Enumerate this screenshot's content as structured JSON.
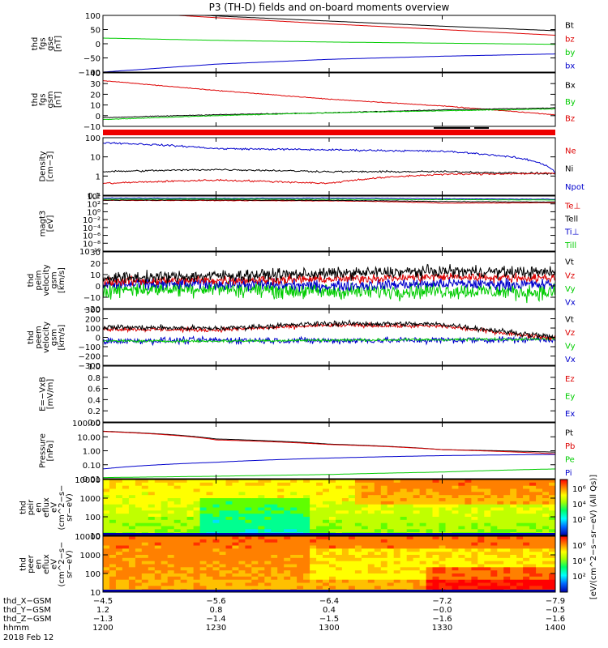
{
  "title": "P3 (TH-D) fields and on-board moments overview",
  "colors": {
    "black": "#000000",
    "red": "#dd0000",
    "green": "#00cc00",
    "blue": "#0000cc"
  },
  "chart_data": [
    {
      "id": "fgs_gse",
      "type": "line",
      "ylabel": [
        "thd",
        "fgs",
        "gse",
        "[nT]"
      ],
      "ylim": [
        -100,
        100
      ],
      "yticks": [
        "100",
        "50",
        "0",
        "−50",
        "−100"
      ],
      "legend": [
        {
          "name": "Bt",
          "color": "black"
        },
        {
          "name": "bz",
          "color": "red"
        },
        {
          "name": "by",
          "color": "green"
        },
        {
          "name": "bx",
          "color": "blue"
        }
      ],
      "x_time_hhmm": [
        "1200",
        "1230",
        "1300",
        "1330",
        "1400"
      ],
      "series": [
        {
          "name": "Bt",
          "values": [
            118,
            98,
            80,
            62,
            46
          ]
        },
        {
          "name": "bz",
          "values": [
            116,
            92,
            70,
            50,
            30
          ]
        },
        {
          "name": "by",
          "values": [
            20,
            12,
            6,
            2,
            -2
          ]
        },
        {
          "name": "bx",
          "values": [
            -100,
            -72,
            -55,
            -44,
            -36
          ]
        }
      ]
    },
    {
      "id": "fgs_gsm",
      "type": "line",
      "ylabel": [
        "thd",
        "fgs",
        "gsm",
        "[nT]"
      ],
      "ylim": [
        -15,
        40
      ],
      "yticks": [
        "40",
        "30",
        "20",
        "10",
        "0",
        "−10"
      ],
      "legend": [
        {
          "name": "Bx",
          "color": "black"
        },
        {
          "name": "By",
          "color": "green"
        },
        {
          "name": "Bz",
          "color": "red"
        }
      ],
      "series": [
        {
          "name": "Bz",
          "values": [
            32,
            22,
            13,
            6,
            -3
          ]
        },
        {
          "name": "Bx",
          "values": [
            -6,
            -3,
            -1,
            2,
            4
          ]
        },
        {
          "name": "By",
          "values": [
            -8,
            -4,
            -1,
            1,
            3
          ]
        }
      ]
    },
    {
      "id": "density",
      "type": "line",
      "ylabel": [
        "Density",
        "[cm−3]"
      ],
      "yscale": "log",
      "yticks": [
        "100",
        "10",
        "1",
        "0.1"
      ],
      "legend": [
        {
          "name": "Ne",
          "color": "red"
        },
        {
          "name": "Ni",
          "color": "black"
        },
        {
          "name": "Npot",
          "color": "blue"
        }
      ],
      "series": [
        {
          "name": "Npot",
          "values": [
            150,
            60,
            50,
            40,
            1.5
          ]
        },
        {
          "name": "Ni",
          "values": [
            1.8,
            2.5,
            1.8,
            1.8,
            1.3
          ]
        },
        {
          "name": "Ne",
          "values": [
            0.3,
            0.5,
            0.3,
            1.2,
            1.4
          ]
        }
      ]
    },
    {
      "id": "temperature",
      "type": "line",
      "ylabel": [
        "magt3",
        "[eV]"
      ],
      "yscale": "log",
      "yticks": [
        "10⁴",
        "10²",
        "10⁰",
        "10⁻²",
        "10⁻⁴",
        "10⁻⁶",
        "10⁻⁸",
        "10⁻¹⁰"
      ],
      "legend": [
        {
          "name": "Te⊥",
          "color": "red"
        },
        {
          "name": "Tell",
          "color": "black"
        },
        {
          "name": "Ti⊥",
          "color": "blue"
        },
        {
          "name": "Till",
          "color": "green"
        }
      ]
    },
    {
      "id": "peim_velocity",
      "type": "line",
      "ylabel": [
        "thd",
        "peim",
        "velocity",
        "gsm",
        "[km/s]"
      ],
      "ylim": [
        -20,
        30
      ],
      "yticks": [
        "30",
        "20",
        "10",
        "0",
        "−10",
        "−20"
      ],
      "legend": [
        {
          "name": "Vt",
          "color": "black"
        },
        {
          "name": "Vz",
          "color": "red"
        },
        {
          "name": "Vy",
          "color": "green"
        },
        {
          "name": "Vx",
          "color": "blue"
        }
      ]
    },
    {
      "id": "peem_velocity",
      "type": "line",
      "ylabel": [
        "thd",
        "peem",
        "velocity",
        "gsm",
        "[km/s]"
      ],
      "ylim": [
        -300,
        300
      ],
      "yticks": [
        "300",
        "200",
        "100",
        "0",
        "−100",
        "−200",
        "−300"
      ],
      "legend": [
        {
          "name": "Vt",
          "color": "black"
        },
        {
          "name": "Vz",
          "color": "red"
        },
        {
          "name": "Vy",
          "color": "green"
        },
        {
          "name": "Vx",
          "color": "blue"
        }
      ]
    },
    {
      "id": "efield",
      "type": "line",
      "ylabel": [
        "E=−VxB",
        "[mV/m]"
      ],
      "ylim": [
        0,
        1
      ],
      "yticks": [
        "1.0",
        "0.8",
        "0.6",
        "0.4",
        "0.2",
        "0.0"
      ],
      "legend": [
        {
          "name": "Ez",
          "color": "red"
        },
        {
          "name": "Ey",
          "color": "green"
        },
        {
          "name": "Ex",
          "color": "blue"
        }
      ]
    },
    {
      "id": "pressure",
      "type": "line",
      "ylabel": [
        "Pressure",
        "[nPa]"
      ],
      "yscale": "log",
      "yticks": [
        "100.00",
        "10.00",
        "1.00",
        "0.10",
        "0.01"
      ],
      "legend": [
        {
          "name": "Pt",
          "color": "black"
        },
        {
          "name": "Pb",
          "color": "red"
        },
        {
          "name": "Pe",
          "color": "green"
        },
        {
          "name": "Pi",
          "color": "blue"
        }
      ],
      "series": [
        {
          "name": "Pt",
          "values": [
            25,
            7,
            3,
            1.2,
            0.8
          ]
        },
        {
          "name": "Pb",
          "values": [
            24,
            6,
            2.8,
            1.2,
            0.6
          ]
        },
        {
          "name": "Pi",
          "values": [
            0.05,
            0.15,
            0.3,
            0.45,
            0.55
          ]
        },
        {
          "name": "Pe",
          "values": [
            0.012,
            0.015,
            0.02,
            0.03,
            0.05
          ]
        }
      ]
    },
    {
      "id": "peir_eflux",
      "type": "heatmap",
      "ylabel": [
        "thd",
        "peir",
        "en",
        "eflux",
        "eV",
        "(cm^2−s−",
        "sr−eV)"
      ],
      "yscale": "log",
      "yticks": [
        "10000",
        "1000",
        "100",
        "10"
      ]
    },
    {
      "id": "peer_eflux",
      "type": "heatmap",
      "ylabel": [
        "thd",
        "peer",
        "en",
        "eflux",
        "eV",
        "(cm^2−s−",
        "sr−eV)"
      ],
      "yscale": "log",
      "yticks": [
        "10000",
        "1000",
        "100",
        "10"
      ]
    }
  ],
  "colorbar": {
    "label": "[eV/(cm^2−s−sr−eV) (All Qs)]",
    "ticks_top": [
      "10⁶",
      "10⁴",
      "10²"
    ],
    "ticks_bottom": [
      "10⁶",
      "10⁴",
      "10²"
    ]
  },
  "axis_rows": [
    {
      "label": "thd_X−GSM",
      "values": [
        "−4.5",
        "−5.6",
        "−6.4",
        "−7.2",
        "−7.9"
      ]
    },
    {
      "label": "thd_Y−GSM",
      "values": [
        "1.2",
        "0.8",
        "0.4",
        "−0.0",
        "−0.5"
      ]
    },
    {
      "label": "thd_Z−GSM",
      "values": [
        "−1.3",
        "−1.4",
        "−1.5",
        "−1.6",
        "−1.6"
      ]
    },
    {
      "label": "hhmm",
      "values": [
        "1200",
        "1230",
        "1300",
        "1330",
        "1400"
      ]
    }
  ],
  "date_label": "2018 Feb 12"
}
